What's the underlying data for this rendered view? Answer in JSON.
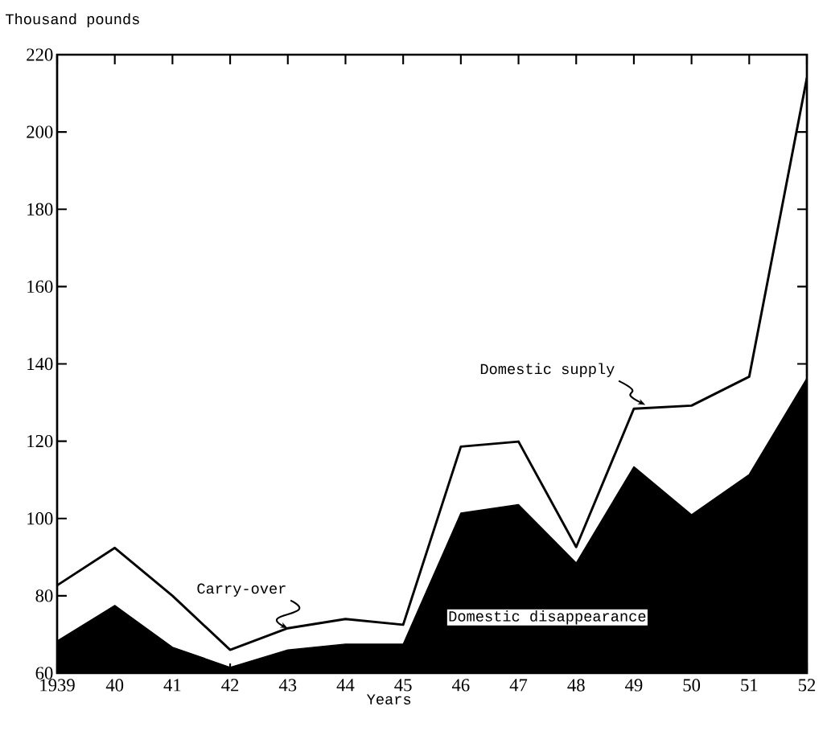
{
  "chart_data": {
    "type": "line",
    "xlabel": "Years",
    "ylabel": "Thousand pounds",
    "x": [
      1939,
      1940,
      1941,
      1942,
      1943,
      1944,
      1945,
      1946,
      1947,
      1948,
      1949,
      1950,
      1951,
      1952
    ],
    "series": [
      {
        "name": "Domestic disappearance",
        "type": "area",
        "color": "#000000",
        "values": [
          68.3,
          77.5,
          66.7,
          61.5,
          66,
          67.5,
          67.5,
          101.4,
          103.6,
          88.5,
          113.4,
          101,
          111.4,
          136.3
        ]
      },
      {
        "name": "Domestic supply",
        "color": "#000000",
        "values": [
          82.7,
          92.4,
          80,
          66,
          71.6,
          74,
          72.5,
          118.6,
          119.9,
          92.6,
          128.4,
          129.2,
          136.7,
          214
        ]
      }
    ],
    "annotations": [
      {
        "text": "Carry-over",
        "x": 1943,
        "y": 71.6
      }
    ],
    "xlim": [
      1939,
      1952
    ],
    "ylim": [
      60,
      220
    ],
    "xticks": [
      {
        "value": 1939,
        "label": "1939"
      },
      {
        "value": 1940,
        "label": "40"
      },
      {
        "value": 1941,
        "label": "41"
      },
      {
        "value": 1942,
        "label": "42"
      },
      {
        "value": 1943,
        "label": "43"
      },
      {
        "value": 1944,
        "label": "44"
      },
      {
        "value": 1945,
        "label": "45"
      },
      {
        "value": 1946,
        "label": "46"
      },
      {
        "value": 1947,
        "label": "47"
      },
      {
        "value": 1948,
        "label": "48"
      },
      {
        "value": 1949,
        "label": "49"
      },
      {
        "value": 1950,
        "label": "50"
      },
      {
        "value": 1951,
        "label": "51"
      },
      {
        "value": 1952,
        "label": "52"
      }
    ],
    "yticks": [
      60,
      80,
      100,
      120,
      140,
      160,
      180,
      200,
      220
    ],
    "grid": false,
    "legend": false,
    "marker": "none",
    "line_style": "solid"
  }
}
